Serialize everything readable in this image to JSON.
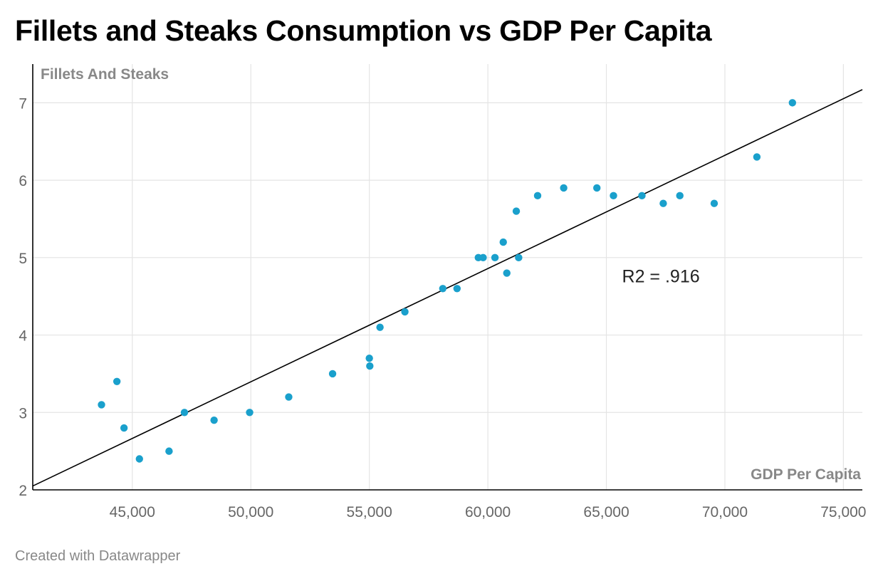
{
  "title": "Fillets and Steaks Consumption vs GDP Per Capita",
  "footer": "Created with Datawrapper",
  "colors": {
    "point": "#1aa0cc",
    "trendline": "#000000",
    "grid": "#e4e4e4"
  },
  "chart_data": {
    "type": "scatter",
    "title": "Fillets and Steaks Consumption vs GDP Per Capita",
    "xlabel": "GDP Per Capita",
    "ylabel": "Fillets And Steaks",
    "xlim": [
      40800,
      75800
    ],
    "ylim": [
      2,
      7.5
    ],
    "x_ticks": [
      45000,
      50000,
      55000,
      60000,
      65000,
      70000,
      75000
    ],
    "x_tick_labels": [
      "45,000",
      "50,000",
      "55,000",
      "60,000",
      "65,000",
      "70,000",
      "75,000"
    ],
    "y_ticks": [
      2,
      3,
      4,
      5,
      6,
      7
    ],
    "y_tick_labels": [
      "2",
      "3",
      "4",
      "5",
      "6",
      "7"
    ],
    "grid": true,
    "annotation": {
      "text": "R2 = .916",
      "x": 67300,
      "y": 4.68
    },
    "trendline": {
      "x": [
        40800,
        75800
      ],
      "y": [
        2.05,
        7.17
      ]
    },
    "points": [
      {
        "x": 43700,
        "y": 3.1
      },
      {
        "x": 44350,
        "y": 3.4
      },
      {
        "x": 44650,
        "y": 2.8
      },
      {
        "x": 45300,
        "y": 2.4
      },
      {
        "x": 46550,
        "y": 2.5
      },
      {
        "x": 47200,
        "y": 3.0
      },
      {
        "x": 48450,
        "y": 2.9
      },
      {
        "x": 49950,
        "y": 3.0
      },
      {
        "x": 51600,
        "y": 3.2
      },
      {
        "x": 53450,
        "y": 3.5
      },
      {
        "x": 55000,
        "y": 3.7
      },
      {
        "x": 55020,
        "y": 3.6
      },
      {
        "x": 55450,
        "y": 4.1
      },
      {
        "x": 56500,
        "y": 4.3
      },
      {
        "x": 58100,
        "y": 4.6
      },
      {
        "x": 58700,
        "y": 4.6
      },
      {
        "x": 59600,
        "y": 5.0
      },
      {
        "x": 59800,
        "y": 5.0
      },
      {
        "x": 60300,
        "y": 5.0
      },
      {
        "x": 60650,
        "y": 5.2
      },
      {
        "x": 60800,
        "y": 4.8
      },
      {
        "x": 61200,
        "y": 5.6
      },
      {
        "x": 61300,
        "y": 5.0
      },
      {
        "x": 62100,
        "y": 5.8
      },
      {
        "x": 63200,
        "y": 5.9
      },
      {
        "x": 64600,
        "y": 5.9
      },
      {
        "x": 65300,
        "y": 5.8
      },
      {
        "x": 66500,
        "y": 5.8
      },
      {
        "x": 67400,
        "y": 5.7
      },
      {
        "x": 68100,
        "y": 5.8
      },
      {
        "x": 69550,
        "y": 5.7
      },
      {
        "x": 71350,
        "y": 6.3
      },
      {
        "x": 72850,
        "y": 7.0
      }
    ]
  }
}
